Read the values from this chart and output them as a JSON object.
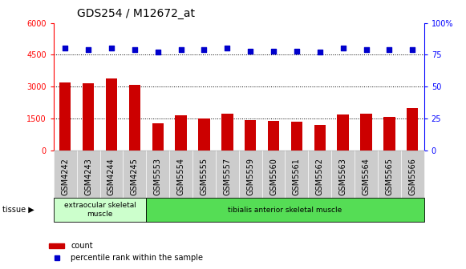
{
  "title": "GDS254 / M12672_at",
  "samples": [
    "GSM4242",
    "GSM4243",
    "GSM4244",
    "GSM4245",
    "GSM5553",
    "GSM5554",
    "GSM5555",
    "GSM5557",
    "GSM5559",
    "GSM5560",
    "GSM5561",
    "GSM5562",
    "GSM5563",
    "GSM5564",
    "GSM5565",
    "GSM5566"
  ],
  "counts": [
    3220,
    3150,
    3380,
    3100,
    1300,
    1650,
    1500,
    1750,
    1450,
    1400,
    1350,
    1200,
    1700,
    1750,
    1600,
    2000
  ],
  "percentiles": [
    80,
    79,
    80,
    79,
    77,
    79,
    79,
    80,
    78,
    78,
    78,
    77,
    80,
    79,
    79,
    79
  ],
  "bar_color": "#cc0000",
  "dot_color": "#0000cc",
  "ylim_left": [
    0,
    6000
  ],
  "ylim_right": [
    0,
    100
  ],
  "yticks_left": [
    0,
    1500,
    3000,
    4500,
    6000
  ],
  "yticks_right": [
    0,
    25,
    50,
    75,
    100
  ],
  "grid_yticks": [
    1500,
    3000,
    4500
  ],
  "tissue_groups": [
    {
      "label": "extraocular skeletal\nmuscle",
      "start": 0,
      "end": 4,
      "color": "#ccffcc"
    },
    {
      "label": "tibialis anterior skeletal muscle",
      "start": 4,
      "end": 16,
      "color": "#55dd55"
    }
  ],
  "tissue_label": "tissue",
  "legend_bar_label": "count",
  "legend_dot_label": "percentile rank within the sample",
  "bg_color": "#ffffff",
  "plot_bg_color": "#ffffff",
  "xtick_bg_color": "#cccccc",
  "grid_color": "#000000",
  "title_fontsize": 10,
  "tick_fontsize": 7,
  "bar_width": 0.5
}
